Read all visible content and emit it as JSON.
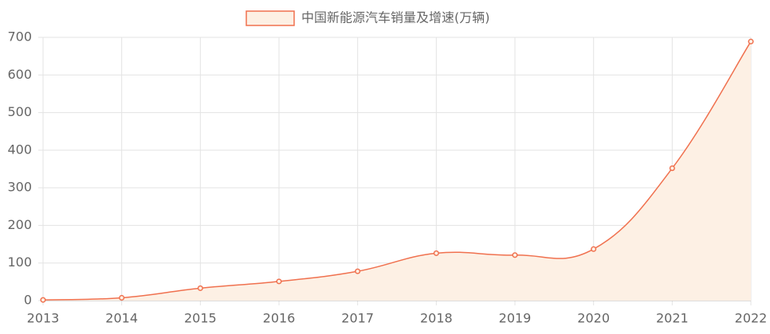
{
  "chart_data": {
    "type": "line",
    "categories": [
      "2013",
      "2014",
      "2015",
      "2016",
      "2017",
      "2018",
      "2019",
      "2020",
      "2021",
      "2022"
    ],
    "series": [
      {
        "name": "中国新能源汽车销量及增速(万辆)",
        "color": "#f0714f",
        "fill_color": "#fdf0e4",
        "values": [
          1.8,
          7.5,
          33,
          51,
          78,
          126,
          121,
          137,
          352,
          689
        ]
      }
    ],
    "fill": true,
    "ylim": [
      0,
      700
    ],
    "yticks": [
      0,
      100,
      200,
      300,
      400,
      500,
      600,
      700
    ],
    "grid": true,
    "legend": "top"
  }
}
